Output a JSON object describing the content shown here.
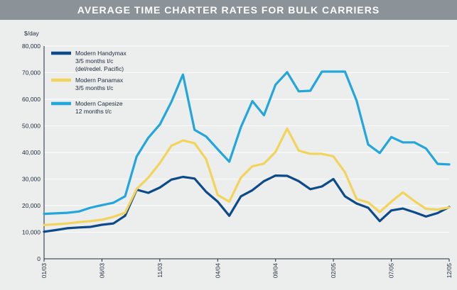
{
  "title": "AVERAGE TIME CHARTER RATES FOR BULK CARRIERS",
  "chart_data": {
    "type": "line",
    "title": "AVERAGE TIME CHARTER RATES FOR BULK CARRIERS",
    "ylabel": "$/day",
    "xlabel": "",
    "ylim": [
      0,
      80000
    ],
    "y_ticks": [
      "0",
      "10,000",
      "20,000",
      "30,000",
      "40,000",
      "50,000",
      "60,000",
      "70,000",
      "80,000"
    ],
    "x_tick_labels": [
      "01/03",
      "06/03",
      "11/03",
      "04/04",
      "09/04",
      "02/05",
      "07/05",
      "12/05"
    ],
    "grid": "horizontal",
    "legend_placement": "top-left",
    "x": [
      "01/03",
      "02/03",
      "03/03",
      "04/03",
      "05/03",
      "06/03",
      "07/03",
      "08/03",
      "09/03",
      "10/03",
      "11/03",
      "12/03",
      "01/04",
      "02/04",
      "03/04",
      "04/04",
      "05/04",
      "06/04",
      "07/04",
      "08/04",
      "09/04",
      "10/04",
      "11/04",
      "12/04",
      "01/05",
      "02/05",
      "03/05",
      "04/05",
      "05/05",
      "06/05",
      "07/05",
      "08/05",
      "09/05",
      "10/05",
      "11/05",
      "12/05"
    ],
    "series": [
      {
        "name": "Modern Handymax 3/5 months t/c (del/redel. Pacific)",
        "name_lines": [
          "Modern Handymax",
          "3/5 months t/c",
          "(del/redel. Pacific)"
        ],
        "color": "#0d4a8a",
        "values": [
          10200,
          10800,
          11500,
          11800,
          12000,
          12800,
          13300,
          16200,
          26000,
          24800,
          26800,
          29800,
          30800,
          30200,
          25200,
          21500,
          16200,
          23500,
          25800,
          29200,
          31300,
          31200,
          29200,
          26200,
          27200,
          30000,
          23500,
          20800,
          19200,
          14200,
          18200,
          18900,
          17500,
          15900,
          17200,
          19500
        ]
      },
      {
        "name": "Modern Panamax 3/5 months t/c",
        "name_lines": [
          "Modern Panamax",
          "3/5 months t/c"
        ],
        "color": "#f2d45c",
        "values": [
          12700,
          13000,
          13300,
          13800,
          14200,
          14700,
          15800,
          17300,
          26300,
          30500,
          36000,
          42500,
          44500,
          43500,
          37500,
          24000,
          21500,
          30500,
          34800,
          35800,
          40200,
          49000,
          40700,
          39500,
          39500,
          38500,
          32500,
          22500,
          21200,
          17600,
          21500,
          25000,
          21700,
          18800,
          18500,
          19300
        ]
      },
      {
        "name": "Modern Capesize 12 months t/c",
        "name_lines": [
          "Modern Capesize",
          "12 months t/c"
        ],
        "color": "#22a6dc",
        "values": [
          16900,
          17100,
          17300,
          17800,
          19200,
          20200,
          21100,
          23500,
          38500,
          45500,
          50500,
          59000,
          69300,
          48500,
          46000,
          41200,
          36500,
          49500,
          59300,
          54000,
          65500,
          70200,
          63000,
          63200,
          70400,
          70400,
          70400,
          59500,
          43000,
          39800,
          45800,
          43800,
          43800,
          41500,
          35700,
          35500
        ]
      }
    ]
  }
}
